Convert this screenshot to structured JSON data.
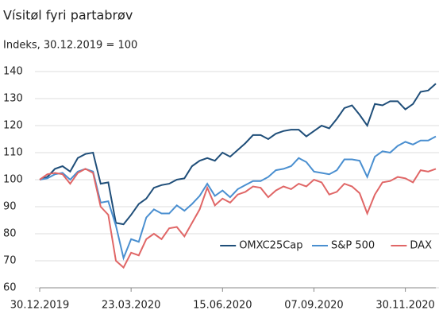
{
  "chart_data": {
    "type": "line",
    "title": "Vísitøl fyri partabrøv",
    "subtitle": "Indeks, 30.12.2019 = 100",
    "categories": [
      "30.12.2019",
      null,
      null,
      null,
      null,
      null,
      null,
      null,
      null,
      null,
      null,
      null,
      "23.03.2020",
      null,
      null,
      null,
      null,
      null,
      null,
      null,
      null,
      null,
      null,
      null,
      "15.06.2020",
      null,
      null,
      null,
      null,
      null,
      null,
      null,
      null,
      null,
      null,
      null,
      "07.09.2020",
      null,
      null,
      null,
      null,
      null,
      null,
      null,
      null,
      null,
      null,
      null,
      "30.11.2020",
      null,
      null,
      null,
      null
    ],
    "series": [
      {
        "name": "OMXC25Cap",
        "color": "#1f4e79",
        "values": [
          100,
          101,
          104,
          105,
          103,
          108,
          109.5,
          110,
          98.5,
          99,
          84,
          83.5,
          87,
          91,
          93,
          97,
          98,
          98.5,
          100,
          100.5,
          105,
          107,
          108,
          107,
          110,
          108.5,
          111,
          113.5,
          116.5,
          116.5,
          115,
          117,
          118,
          118.5,
          118.5,
          116,
          118,
          120,
          119,
          122.5,
          126.5,
          127.5,
          124,
          120,
          128,
          127.5,
          129,
          129,
          126,
          128,
          132.5,
          133,
          135.5
        ]
      },
      {
        "name": "S&P 500",
        "color": "#4a8fd0",
        "values": [
          100,
          100.5,
          102,
          102.5,
          100,
          103,
          104,
          103,
          91.5,
          92,
          83,
          71,
          78,
          77,
          86,
          89,
          87.5,
          87.5,
          90.5,
          88.5,
          91,
          94,
          98.5,
          94,
          96,
          93.5,
          96.5,
          98,
          99.5,
          99.5,
          101,
          103.5,
          104,
          105,
          108,
          106.5,
          103,
          102.5,
          102,
          103.5,
          107.5,
          107.5,
          107,
          101,
          108.5,
          110.5,
          110,
          112.5,
          114,
          113,
          114.5,
          114.5,
          116
        ]
      },
      {
        "name": "DAX",
        "color": "#e06666",
        "values": [
          100,
          102,
          102.5,
          102,
          98.5,
          102.5,
          104,
          102.5,
          90,
          87,
          70,
          67.5,
          73,
          72,
          78,
          80,
          78,
          82,
          82.5,
          79,
          84,
          89,
          97,
          90.5,
          93,
          91.5,
          94.5,
          95.5,
          97.5,
          97,
          93.5,
          96,
          97.5,
          96.5,
          98.5,
          97.5,
          100,
          99,
          94.5,
          95.5,
          98.5,
          97.5,
          95,
          87.5,
          94.5,
          99,
          99.5,
          101,
          100.5,
          99,
          103.5,
          103,
          104
        ]
      }
    ],
    "ylim": [
      60,
      140
    ],
    "yticks": [
      60,
      70,
      80,
      90,
      100,
      110,
      120,
      130,
      140
    ],
    "grid": true,
    "legend": "lower right"
  }
}
